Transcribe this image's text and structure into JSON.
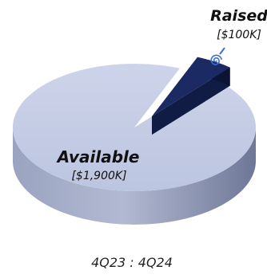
{
  "chart_data": {
    "type": "pie",
    "style": "3d",
    "period_label": "4Q23 : 4Q24",
    "slices": [
      {
        "name": "Available",
        "value_label": "[$1,900K]",
        "value": 1900,
        "color": "#c5cde6",
        "exploded": false
      },
      {
        "name": "Raised",
        "value_label": "[$100K]",
        "value": 100,
        "color": "#1b2a63",
        "exploded": true
      }
    ],
    "annotations": [
      {
        "slice": "Raised",
        "icon": "spiral-icon",
        "icon_color": "#3e6fd8"
      }
    ]
  }
}
